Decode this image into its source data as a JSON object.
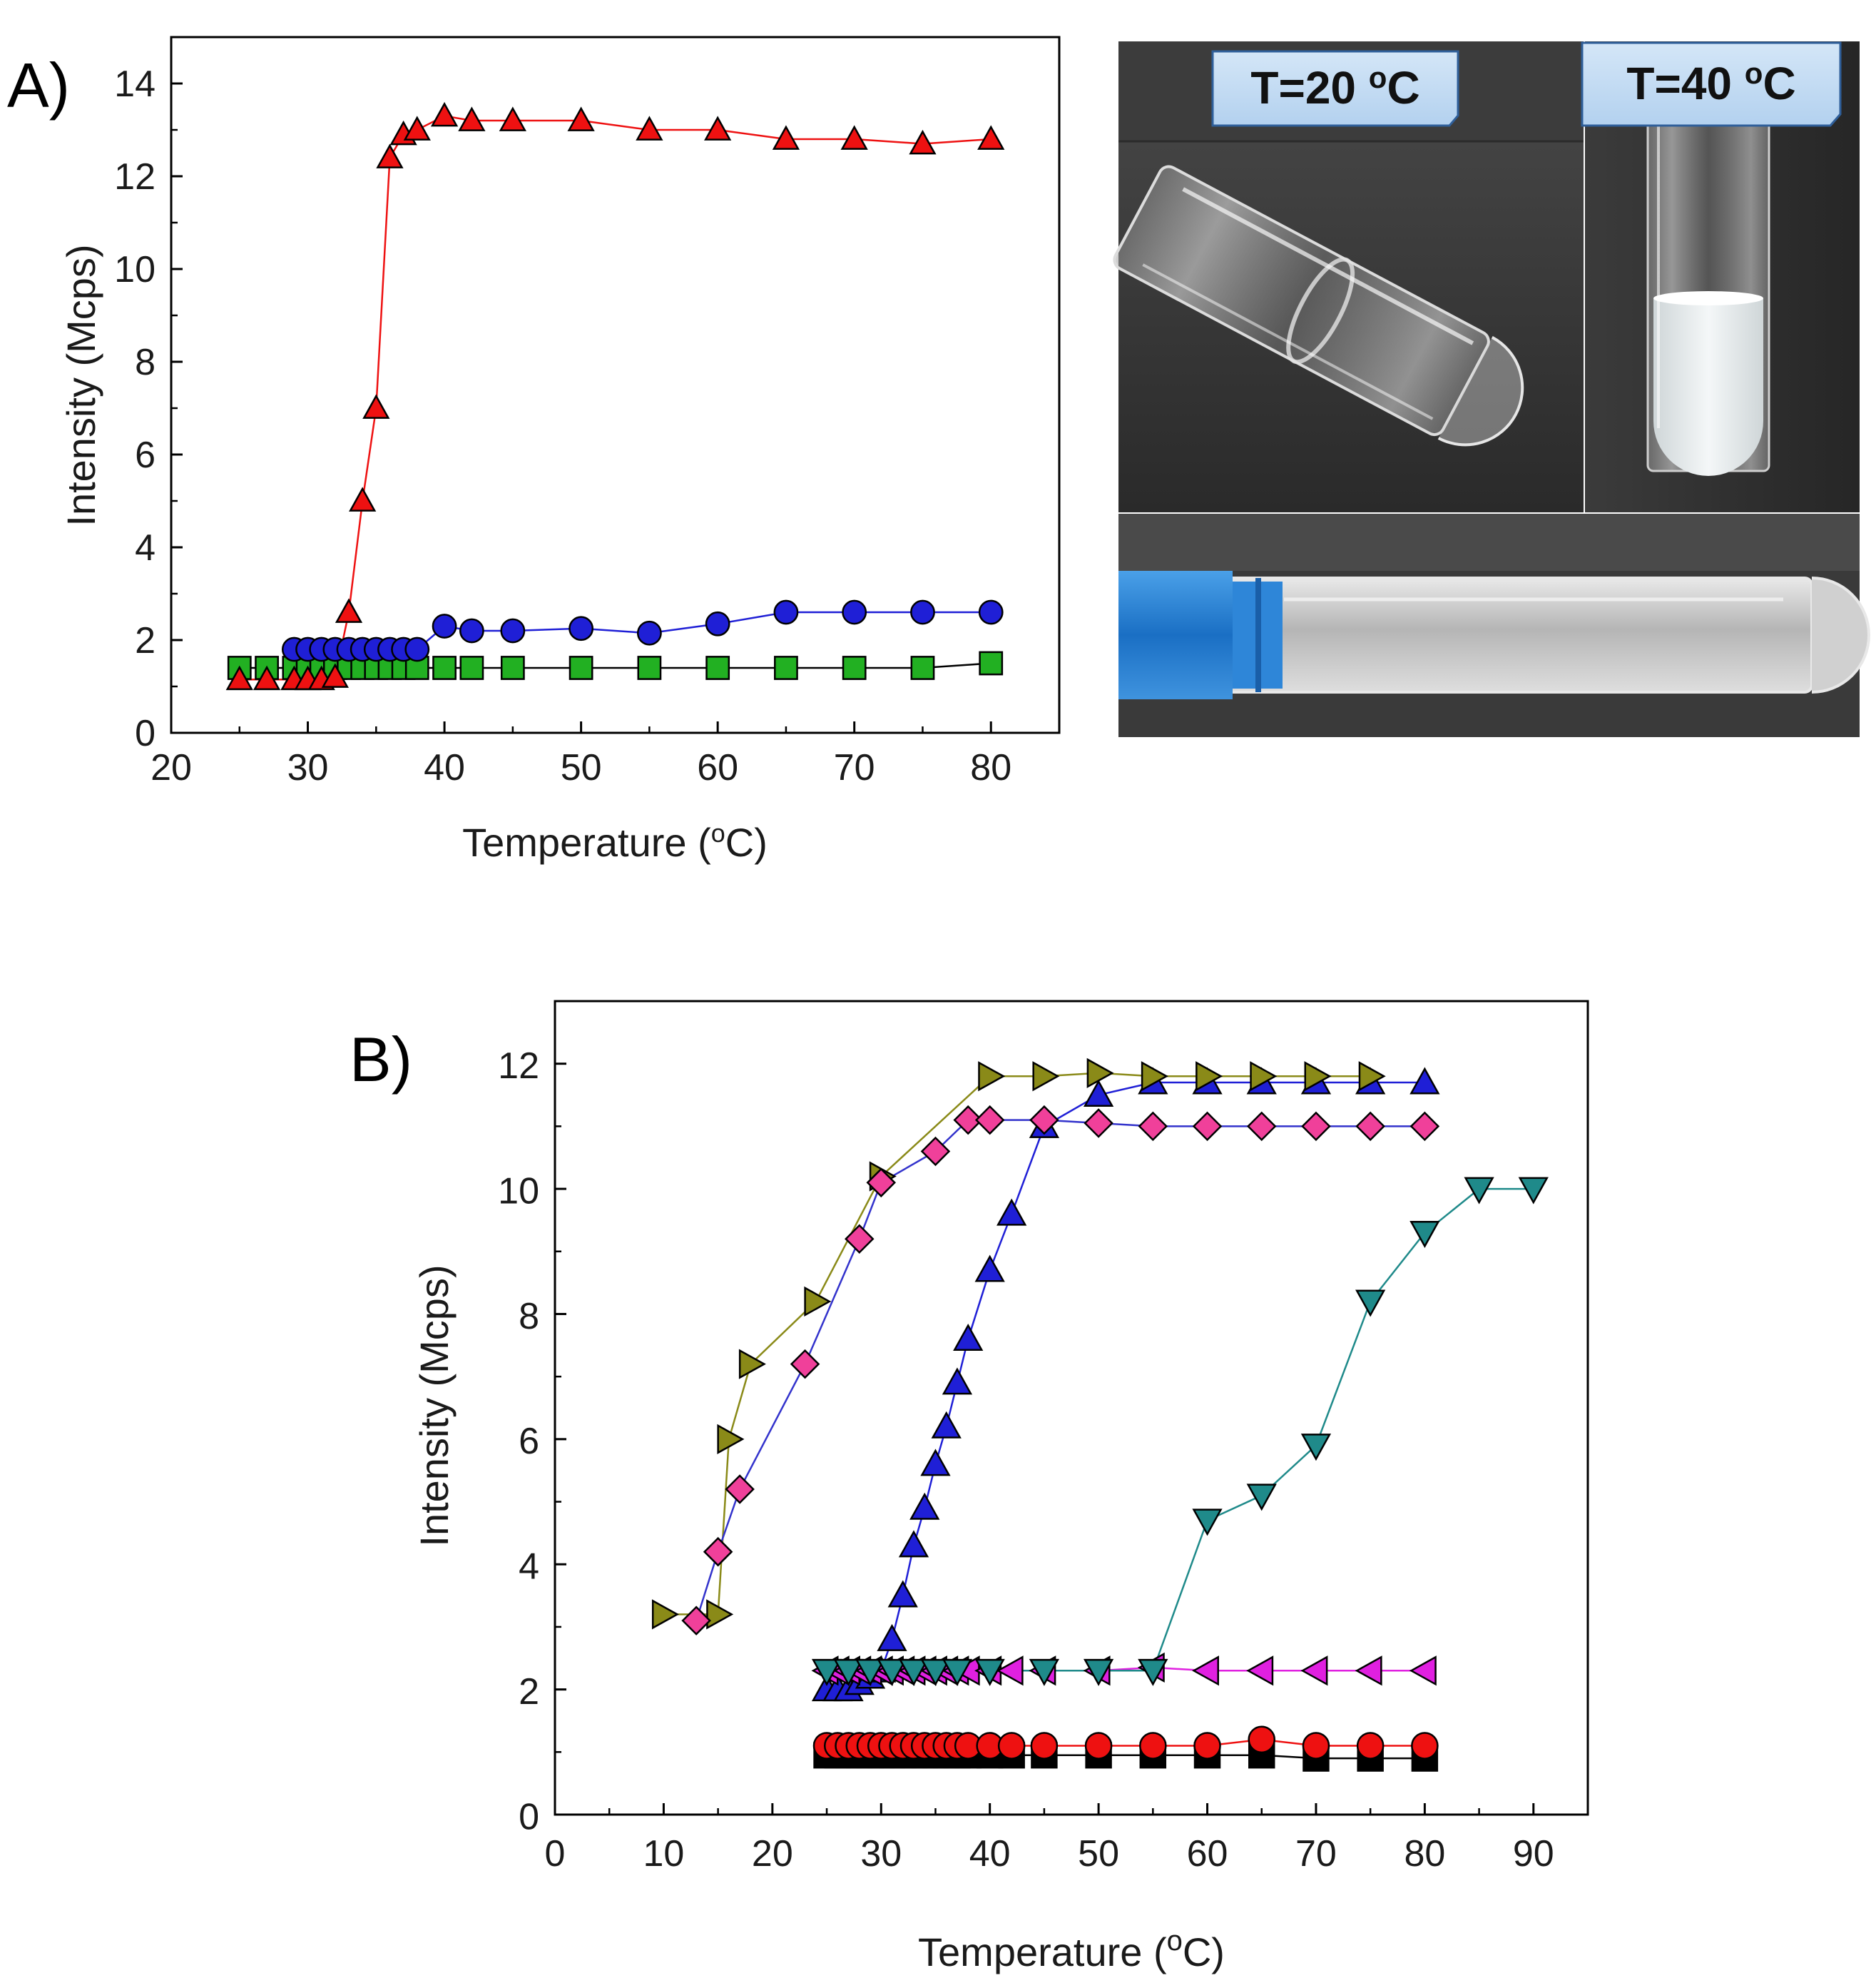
{
  "chart_data": [
    {
      "type": "scatter",
      "panel_label": "A)",
      "xlabel": "Temperature (oC)",
      "xlabel_parts": {
        "main": "Temperature (",
        "sup": "o",
        "end": "C)"
      },
      "ylabel": "Intensity (Mcps)",
      "xlim": [
        20,
        85
      ],
      "ylim": [
        0,
        15
      ],
      "xticks": [
        20,
        30,
        40,
        50,
        60,
        70,
        80
      ],
      "yticks": [
        0,
        2,
        4,
        6,
        8,
        10,
        12,
        14
      ],
      "grid": false,
      "series": [
        {
          "name": "green squares",
          "marker": "square",
          "color": "#22b022",
          "line_color": "#000000",
          "x": [
            25,
            27,
            29,
            30,
            31,
            32,
            33,
            34,
            35,
            36,
            37,
            38,
            40,
            42,
            45,
            50,
            55,
            60,
            65,
            70,
            75,
            80
          ],
          "y": [
            1.4,
            1.4,
            1.4,
            1.4,
            1.4,
            1.4,
            1.4,
            1.4,
            1.4,
            1.4,
            1.4,
            1.4,
            1.4,
            1.4,
            1.4,
            1.4,
            1.4,
            1.4,
            1.4,
            1.4,
            1.4,
            1.5
          ]
        },
        {
          "name": "blue circles",
          "marker": "circle",
          "color": "#1f1fd6",
          "line_color": "#1f1fd6",
          "x": [
            29,
            30,
            31,
            32,
            33,
            34,
            35,
            36,
            37,
            38,
            40,
            42,
            45,
            50,
            55,
            60,
            65,
            70,
            75,
            80
          ],
          "y": [
            1.8,
            1.8,
            1.8,
            1.8,
            1.8,
            1.8,
            1.8,
            1.8,
            1.8,
            1.8,
            2.3,
            2.2,
            2.2,
            2.25,
            2.15,
            2.35,
            2.6,
            2.6,
            2.6,
            2.6
          ]
        },
        {
          "name": "red triangles",
          "marker": "triangle-up",
          "color": "#ee1111",
          "line_color": "#ee1111",
          "x": [
            25,
            27,
            29,
            30,
            31,
            32,
            33,
            34,
            35,
            36,
            37,
            38,
            40,
            42,
            45,
            50,
            55,
            60,
            65,
            70,
            75,
            80
          ],
          "y": [
            1.15,
            1.15,
            1.15,
            1.15,
            1.15,
            1.2,
            2.6,
            5.0,
            7.0,
            12.4,
            12.9,
            13.0,
            13.3,
            13.2,
            13.2,
            13.2,
            13.0,
            13.0,
            12.8,
            12.8,
            12.7,
            12.8
          ]
        }
      ]
    },
    {
      "type": "scatter",
      "panel_label": "B)",
      "xlabel": "Temperature (oC)",
      "xlabel_parts": {
        "main": "Temperature (",
        "sup": "o",
        "end": "C)"
      },
      "ylabel": "Intensity (Mcps)",
      "xlim": [
        0,
        95
      ],
      "ylim": [
        0,
        13
      ],
      "xticks": [
        0,
        10,
        20,
        30,
        40,
        50,
        60,
        70,
        80,
        90
      ],
      "yticks": [
        0,
        2,
        4,
        6,
        8,
        10,
        12
      ],
      "grid": false,
      "series": [
        {
          "name": "black squares",
          "marker": "square",
          "color": "#000000",
          "line_color": "#000000",
          "x": [
            25,
            26,
            27,
            28,
            29,
            30,
            31,
            32,
            33,
            34,
            35,
            36,
            37,
            38,
            40,
            42,
            45,
            50,
            55,
            60,
            65,
            70,
            75,
            80
          ],
          "y": [
            0.95,
            0.95,
            0.95,
            0.95,
            0.95,
            0.95,
            0.95,
            0.95,
            0.95,
            0.95,
            0.95,
            0.95,
            0.95,
            0.95,
            0.95,
            0.95,
            0.95,
            0.95,
            0.95,
            0.95,
            0.95,
            0.9,
            0.9,
            0.9
          ]
        },
        {
          "name": "red circles",
          "marker": "circle",
          "color": "#ee1111",
          "line_color": "#ee1111",
          "x": [
            25,
            26,
            27,
            28,
            29,
            30,
            31,
            32,
            33,
            34,
            35,
            36,
            37,
            38,
            40,
            42,
            45,
            50,
            55,
            60,
            65,
            70,
            75,
            80
          ],
          "y": [
            1.1,
            1.1,
            1.1,
            1.1,
            1.1,
            1.1,
            1.1,
            1.1,
            1.1,
            1.1,
            1.1,
            1.1,
            1.1,
            1.1,
            1.1,
            1.1,
            1.1,
            1.1,
            1.1,
            1.1,
            1.2,
            1.1,
            1.1,
            1.1
          ]
        },
        {
          "name": "blue triangles",
          "marker": "triangle-up",
          "color": "#1f1fd6",
          "line_color": "#1f1fd6",
          "x": [
            25,
            26,
            27,
            28,
            29,
            30,
            31,
            32,
            33,
            34,
            35,
            36,
            37,
            38,
            40,
            42,
            45,
            50,
            55,
            60,
            65,
            70,
            75,
            80
          ],
          "y": [
            2.0,
            2.0,
            2.0,
            2.1,
            2.2,
            2.3,
            2.8,
            3.5,
            4.3,
            4.9,
            5.6,
            6.2,
            6.9,
            7.6,
            8.7,
            9.6,
            11.0,
            11.5,
            11.7,
            11.7,
            11.7,
            11.7,
            11.7,
            11.7
          ]
        },
        {
          "name": "magenta left triangles",
          "marker": "triangle-left",
          "color": "#e020e0",
          "line_color": "#e020e0",
          "x": [
            25,
            26,
            27,
            28,
            29,
            30,
            31,
            32,
            33,
            34,
            35,
            36,
            37,
            38,
            40,
            42,
            45,
            50,
            55,
            60,
            65,
            70,
            75,
            80
          ],
          "y": [
            2.3,
            2.3,
            2.3,
            2.3,
            2.3,
            2.3,
            2.3,
            2.3,
            2.3,
            2.3,
            2.3,
            2.3,
            2.3,
            2.3,
            2.3,
            2.3,
            2.3,
            2.3,
            2.35,
            2.3,
            2.3,
            2.3,
            2.3,
            2.3
          ]
        },
        {
          "name": "teal down triangles",
          "marker": "triangle-down",
          "color": "#1f8a8a",
          "line_color": "#1f8a8a",
          "x": [
            25,
            27,
            29,
            31,
            33,
            35,
            37,
            40,
            45,
            50,
            55,
            60,
            65,
            70,
            75,
            80,
            85,
            90
          ],
          "y": [
            2.3,
            2.3,
            2.3,
            2.3,
            2.3,
            2.3,
            2.3,
            2.3,
            2.3,
            2.3,
            2.3,
            4.7,
            5.1,
            5.9,
            8.2,
            9.3,
            10.0,
            10.0
          ]
        },
        {
          "name": "olive right triangles",
          "marker": "triangle-right",
          "color": "#8a8a18",
          "line_color": "#8a8a18",
          "x": [
            10,
            15,
            16,
            18,
            24,
            30,
            40,
            45,
            50,
            55,
            60,
            65,
            70,
            75
          ],
          "y": [
            3.2,
            3.2,
            6.0,
            7.2,
            8.2,
            10.2,
            11.8,
            11.8,
            11.85,
            11.8,
            11.8,
            11.8,
            11.8,
            11.8
          ]
        },
        {
          "name": "pink diamonds",
          "marker": "diamond",
          "color": "#f0409a",
          "line_color": "#3333cc",
          "x": [
            13,
            15,
            17,
            23,
            28,
            30,
            35,
            38,
            40,
            45,
            50,
            55,
            60,
            65,
            70,
            75,
            80
          ],
          "y": [
            3.1,
            4.2,
            5.2,
            7.2,
            9.2,
            10.1,
            10.6,
            11.1,
            11.1,
            11.1,
            11.05,
            11.0,
            11.0,
            11.0,
            11.0,
            11.0,
            11.0
          ]
        }
      ]
    }
  ],
  "photos": {
    "caption_20": "T=20 oC",
    "caption_20_parts": {
      "main": "T=20 ",
      "sup": "o",
      "end": "C"
    },
    "caption_40": "T=40 oC",
    "caption_40_parts": {
      "main": "T=40 ",
      "sup": "o",
      "end": "C"
    }
  }
}
